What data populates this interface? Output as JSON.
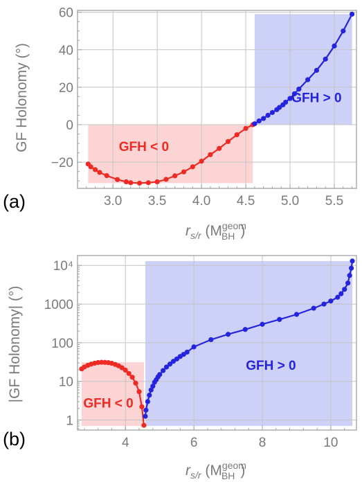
{
  "colors": {
    "negative": "#ee2a24",
    "positive": "#2424dd",
    "negative_fill": "#fdd4d4",
    "positive_fill": "#cdd0f7",
    "axis": "#a0a0a0",
    "grid": "#c4c4c4",
    "text": "#7a7a7a"
  },
  "chart_data": [
    {
      "type": "line",
      "panel_label": "(a)",
      "ylabel": "GF Holonomy (°)",
      "xlabel": {
        "main": "r",
        "sub": "s/r",
        "open": " (M",
        "sup": "geom",
        "sub2": "BH",
        "close": ")"
      },
      "xlim": [
        2.6,
        5.75
      ],
      "ylim": [
        -34,
        61
      ],
      "xticks": [
        3.0,
        3.5,
        4.0,
        4.5,
        5.0,
        5.5
      ],
      "xtick_labels": [
        "3.0",
        "3.5",
        "4.0",
        "4.5",
        "5.0",
        "5.5"
      ],
      "yticks": [
        -20,
        0,
        20,
        40,
        60
      ],
      "ytick_labels": [
        "−20",
        "0",
        "20",
        "40",
        "60"
      ],
      "annotations": [
        {
          "text": "GFH < 0",
          "color": "negative",
          "x": 3.35,
          "y": -14
        },
        {
          "text": "GFH > 0",
          "color": "positive",
          "x": 5.3,
          "y": 12
        }
      ],
      "series": [
        {
          "color": "negative",
          "points": [
            [
              2.72,
              -21
            ],
            [
              2.75,
              -22.5
            ],
            [
              2.8,
              -24
            ],
            [
              2.85,
              -25.5
            ],
            [
              2.93,
              -27.2
            ],
            [
              3.05,
              -29.3
            ],
            [
              3.15,
              -30.5
            ],
            [
              3.2,
              -31
            ],
            [
              3.3,
              -31.2
            ],
            [
              3.4,
              -31
            ],
            [
              3.5,
              -30.5
            ],
            [
              3.6,
              -29.2
            ],
            [
              3.7,
              -27.3
            ],
            [
              3.8,
              -25.2
            ],
            [
              3.9,
              -22.5
            ],
            [
              4.0,
              -19.5
            ],
            [
              4.1,
              -16
            ],
            [
              4.2,
              -12.7
            ],
            [
              4.3,
              -9
            ],
            [
              4.4,
              -5.4
            ],
            [
              4.5,
              -2
            ],
            [
              4.58,
              0
            ]
          ]
        },
        {
          "color": "positive",
          "points": [
            [
              4.6,
              0.5
            ],
            [
              4.65,
              2
            ],
            [
              4.7,
              3.3
            ],
            [
              4.75,
              5
            ],
            [
              4.8,
              6.5
            ],
            [
              4.85,
              8
            ],
            [
              4.88,
              9.2
            ],
            [
              4.92,
              10.6
            ],
            [
              4.95,
              12
            ],
            [
              5.0,
              14
            ],
            [
              5.05,
              16.5
            ],
            [
              5.1,
              19
            ],
            [
              5.2,
              24
            ],
            [
              5.3,
              29
            ],
            [
              5.4,
              35
            ],
            [
              5.5,
              42
            ],
            [
              5.6,
              50
            ],
            [
              5.7,
              59
            ]
          ]
        }
      ]
    },
    {
      "type": "line",
      "panel_label": "(b)",
      "ylabel": "|GF Holonomy| (°)",
      "xlabel": {
        "main": "r",
        "sub": "s/r",
        "open": " (M",
        "sup": "geom",
        "sub2": "BH",
        "close": ")"
      },
      "yscale": "log",
      "xlim": [
        2.6,
        10.75
      ],
      "ylim": [
        0.55,
        18000
      ],
      "xticks": [
        4,
        6,
        8,
        10
      ],
      "xtick_labels": [
        "4",
        "6",
        "8",
        "10"
      ],
      "yticks": [
        1,
        10,
        100,
        1000,
        10000
      ],
      "ytick_labels": [
        "1",
        "10",
        "100",
        "1000",
        "10⁴"
      ],
      "annotations": [
        {
          "text": "GFH < 0",
          "color": "negative",
          "x": 3.5,
          "y": 2.1
        },
        {
          "text": "GFH > 0",
          "color": "positive",
          "x": 8.25,
          "y": 20
        }
      ],
      "series": [
        {
          "color": "negative",
          "points": [
            [
              2.72,
              21
            ],
            [
              2.8,
              23.5
            ],
            [
              2.9,
              26
            ],
            [
              3.0,
              28
            ],
            [
              3.1,
              29.5
            ],
            [
              3.2,
              30.7
            ],
            [
              3.3,
              31.2
            ],
            [
              3.4,
              31
            ],
            [
              3.5,
              30.5
            ],
            [
              3.6,
              29.3
            ],
            [
              3.7,
              27.5
            ],
            [
              3.8,
              25.3
            ],
            [
              3.9,
              22.5
            ],
            [
              4.0,
              19.5
            ],
            [
              4.1,
              16
            ],
            [
              4.2,
              12.8
            ],
            [
              4.3,
              9
            ],
            [
              4.4,
              5.4
            ],
            [
              4.48,
              2.2
            ],
            [
              4.54,
              0.73
            ]
          ]
        },
        {
          "color": "positive",
          "points": [
            [
              4.58,
              1.25
            ],
            [
              4.6,
              1.8
            ],
            [
              4.65,
              3
            ],
            [
              4.7,
              4.4
            ],
            [
              4.75,
              6
            ],
            [
              4.8,
              7.5
            ],
            [
              4.85,
              9.5
            ],
            [
              4.9,
              11
            ],
            [
              4.95,
              13
            ],
            [
              5.0,
              15
            ],
            [
              5.1,
              19
            ],
            [
              5.2,
              23.5
            ],
            [
              5.3,
              28
            ],
            [
              5.4,
              33
            ],
            [
              5.5,
              38
            ],
            [
              5.6,
              44
            ],
            [
              5.7,
              50
            ],
            [
              5.8,
              57
            ],
            [
              6.0,
              78
            ],
            [
              6.5,
              120
            ],
            [
              7.0,
              165
            ],
            [
              7.5,
              220
            ],
            [
              8.0,
              300
            ],
            [
              8.5,
              400
            ],
            [
              9.0,
              540
            ],
            [
              9.5,
              780
            ],
            [
              9.8,
              1000
            ],
            [
              10.0,
              1200
            ],
            [
              10.2,
              1500
            ],
            [
              10.3,
              1850
            ],
            [
              10.4,
              2400
            ],
            [
              10.5,
              3500
            ],
            [
              10.55,
              5500
            ],
            [
              10.6,
              8500
            ],
            [
              10.63,
              13000
            ]
          ]
        }
      ]
    }
  ]
}
